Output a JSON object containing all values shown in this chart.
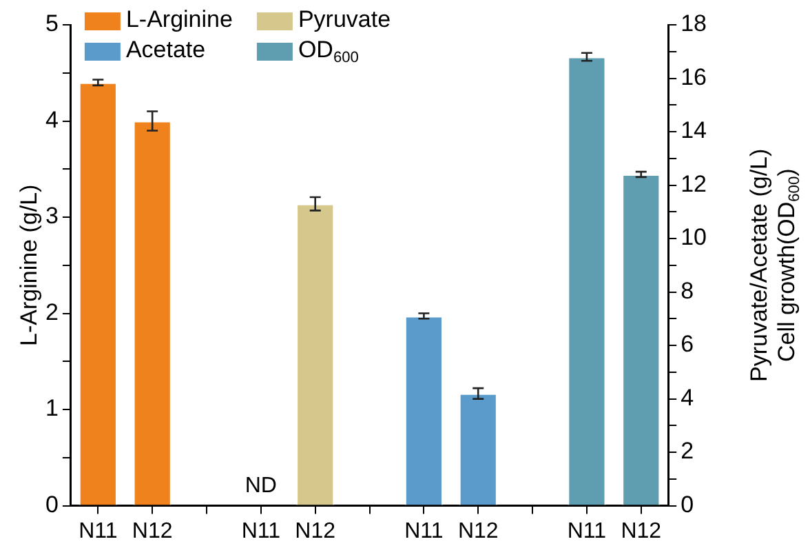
{
  "chart_data": {
    "type": "bar",
    "ylabel": "L-Arginine (g/L)",
    "y2label": "Pyruvate/Acetate (g/L)\nCell growth(OD$_{600}$)",
    "categories": [
      "N11",
      "N12",
      null,
      "N11",
      "N12",
      null,
      "N11",
      "N12",
      null,
      "N11",
      "N12"
    ],
    "series": [
      {
        "name": "L-Arginine",
        "color": "#f0821e",
        "values": [
          4.4,
          4.0,
          null,
          null,
          null,
          null,
          null,
          null,
          null,
          null,
          null
        ],
        "errors": [
          0.03,
          0.1,
          null,
          null,
          null,
          null,
          null,
          null,
          null,
          null,
          null
        ]
      },
      {
        "name": "Pyruvate",
        "color": "#d6c88c",
        "axis": "y2",
        "values": [
          null,
          null,
          null,
          null,
          11.3,
          null,
          null,
          null,
          null,
          null,
          null
        ],
        "errors": [
          null,
          null,
          null,
          null,
          0.25,
          null,
          null,
          null,
          null,
          null,
          null
        ],
        "value_labels": [
          null,
          null,
          null,
          "ND",
          null,
          null,
          null,
          null,
          null,
          null,
          null
        ]
      },
      {
        "name": "Acetate",
        "color": "#5b9bcc",
        "axis": "y2",
        "values": [
          null,
          null,
          null,
          null,
          null,
          null,
          7.1,
          4.2,
          null,
          null,
          null
        ],
        "errors": [
          null,
          null,
          null,
          null,
          null,
          null,
          0.1,
          0.2,
          null,
          null,
          null
        ]
      },
      {
        "name": "OD$_{600}$",
        "color": "#5f9eb0",
        "axis": "y2",
        "values": [
          null,
          null,
          null,
          null,
          null,
          null,
          null,
          null,
          null,
          16.8,
          12.4
        ],
        "errors": [
          null,
          null,
          null,
          null,
          null,
          null,
          null,
          null,
          null,
          0.15,
          0.1
        ]
      }
    ],
    "ylim": [
      0,
      5
    ],
    "yticks": [
      0,
      {
        "value": 0.5,
        "label": null
      },
      1,
      {
        "value": 1.5,
        "label": null
      },
      2,
      {
        "value": 2.5,
        "label": null
      },
      3,
      {
        "value": 3.5,
        "label": null
      },
      4,
      {
        "value": 4.5,
        "label": null
      },
      5
    ],
    "y2lim": [
      0,
      18
    ],
    "y2ticks": [
      0,
      {
        "value": 1,
        "label": null
      },
      2,
      {
        "value": 3,
        "label": null
      },
      4,
      {
        "value": 5,
        "label": null
      },
      6,
      {
        "value": 7,
        "label": null
      },
      8,
      {
        "value": 9,
        "label": null
      },
      10,
      {
        "value": 11,
        "label": null
      },
      12,
      {
        "value": 13,
        "label": null
      },
      14,
      {
        "value": 15,
        "label": null
      },
      16,
      {
        "value": 17,
        "label": null
      },
      18
    ],
    "grid": false,
    "legend": "top left"
  }
}
